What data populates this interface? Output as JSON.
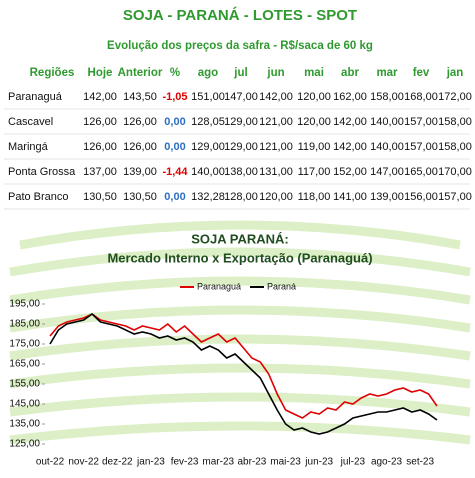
{
  "header": {
    "title": "SOJA - PARANÁ - LOTES - SPOT",
    "subtitle": "Evolução dos preços da safra - R$/saca de 60 kg"
  },
  "table": {
    "headers": [
      "Regiões",
      "Hoje",
      "Anterior",
      "%",
      "ago",
      "jul",
      "jun",
      "mai",
      "abr",
      "mar",
      "fev",
      "jan"
    ],
    "rows": [
      [
        "Paranaguá",
        "142,00",
        "143,50",
        "-1,05",
        "151,00",
        "147,00",
        "142,00",
        "120,00",
        "162,00",
        "158,00",
        "168,00",
        "172,00"
      ],
      [
        "Cascavel",
        "126,00",
        "126,00",
        "0,00",
        "128,05",
        "129,00",
        "121,00",
        "120,00",
        "142,00",
        "140,00",
        "157,00",
        "158,00"
      ],
      [
        "Maringá",
        "126,00",
        "126,00",
        "0,00",
        "129,00",
        "129,00",
        "121,00",
        "119,00",
        "142,00",
        "140,00",
        "157,00",
        "158,00"
      ],
      [
        "Ponta Grossa",
        "137,00",
        "139,00",
        "-1,44",
        "140,00",
        "138,00",
        "131,00",
        "117,00",
        "152,00",
        "147,00",
        "165,00",
        "170,00"
      ],
      [
        "Pato Branco",
        "130,50",
        "130,50",
        "0,00",
        "132,28",
        "128,00",
        "120,00",
        "118,00",
        "141,00",
        "139,00",
        "156,00",
        "157,00"
      ]
    ]
  },
  "chart_data": {
    "type": "line",
    "title": "SOJA PARANÁ:",
    "subtitle": "Mercado Interno x Exportação (Paranaguá)",
    "categories": [
      "out-22",
      null,
      null,
      null,
      "nov-22",
      null,
      null,
      null,
      "dez-22",
      null,
      null,
      null,
      "jan-23",
      null,
      null,
      null,
      "fev-23",
      null,
      null,
      null,
      "mar-23",
      null,
      null,
      null,
      "abr-23",
      null,
      null,
      null,
      "mai-23",
      null,
      null,
      null,
      "jun-23",
      null,
      null,
      null,
      "jul-23",
      null,
      null,
      null,
      "ago-23",
      null,
      null,
      null,
      "set-23",
      null,
      null
    ],
    "series": [
      {
        "name": "Paranaguá",
        "color": "#e00000",
        "values": [
          179,
          184,
          186,
          187,
          188,
          190,
          187,
          186,
          185,
          184,
          182,
          184,
          183,
          182,
          185,
          181,
          184,
          180,
          176,
          178,
          180,
          176,
          178,
          173,
          168,
          166,
          160,
          150,
          142,
          140,
          138,
          141,
          140,
          143,
          142,
          146,
          145,
          148,
          150,
          149,
          150,
          152,
          153,
          151,
          152,
          150,
          144
        ]
      },
      {
        "name": "Paraná",
        "color": "#000000",
        "values": [
          175,
          182,
          185,
          186,
          187,
          190,
          186,
          185,
          184,
          182,
          180,
          181,
          180,
          178,
          179,
          177,
          178,
          176,
          172,
          174,
          172,
          168,
          170,
          166,
          162,
          158,
          150,
          142,
          135,
          132,
          133,
          131,
          130,
          131,
          133,
          135,
          138,
          139,
          140,
          141,
          141,
          142,
          143,
          141,
          142,
          140,
          137
        ]
      }
    ],
    "ylim": [
      125,
      195
    ],
    "yticks": [
      {
        "value": 125,
        "label": "125,00"
      },
      {
        "value": 135,
        "label": "135,00"
      },
      {
        "value": 145,
        "label": "145,00"
      },
      {
        "value": 155,
        "label": "155,00"
      },
      {
        "value": 165,
        "label": "165,00"
      },
      {
        "value": 175,
        "label": "175,00"
      },
      {
        "value": 185,
        "label": "185,00"
      },
      {
        "value": 195,
        "label": "195,00"
      }
    ],
    "legend": "top"
  }
}
